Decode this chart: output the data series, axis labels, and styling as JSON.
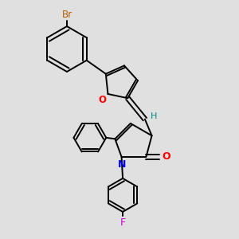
{
  "bg_color": "#e0e0e0",
  "bond_color": "#000000",
  "bond_width": 1.4,
  "figsize": [
    3.0,
    3.0
  ],
  "dpi": 100,
  "xlim": [
    0,
    10
  ],
  "ylim": [
    0,
    10
  ]
}
